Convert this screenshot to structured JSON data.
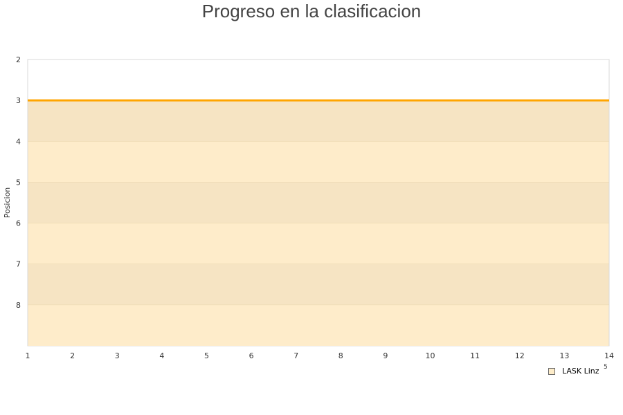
{
  "chart_data": {
    "type": "line",
    "title": "Progreso en la clasificacion",
    "ylabel": "Posicion",
    "xlabel": "",
    "x": [
      1,
      2,
      3,
      4,
      5,
      6,
      7,
      8,
      9,
      10,
      11,
      12,
      13,
      14
    ],
    "ylim": [
      2,
      9
    ],
    "y_inverted": true,
    "y_ticks": [
      2,
      3,
      4,
      5,
      6,
      7,
      8
    ],
    "series": [
      {
        "name": "LASK Linz",
        "values": [
          3,
          3,
          3,
          3,
          3,
          3,
          3,
          3,
          3,
          3,
          3,
          3,
          3,
          3
        ],
        "color": "#ffa500"
      }
    ],
    "bands": [
      {
        "from": 3,
        "to": 4,
        "color": "#f6e4c3"
      },
      {
        "from": 4,
        "to": 5,
        "color": "#feecca"
      },
      {
        "from": 5,
        "to": 6,
        "color": "#f6e4c3"
      },
      {
        "from": 6,
        "to": 7,
        "color": "#feecca"
      },
      {
        "from": 7,
        "to": 8,
        "color": "#f6e4c3"
      },
      {
        "from": 8,
        "to": 9,
        "color": "#feecca"
      }
    ],
    "legend_placement": "bottom-right",
    "stray_label": "5"
  }
}
